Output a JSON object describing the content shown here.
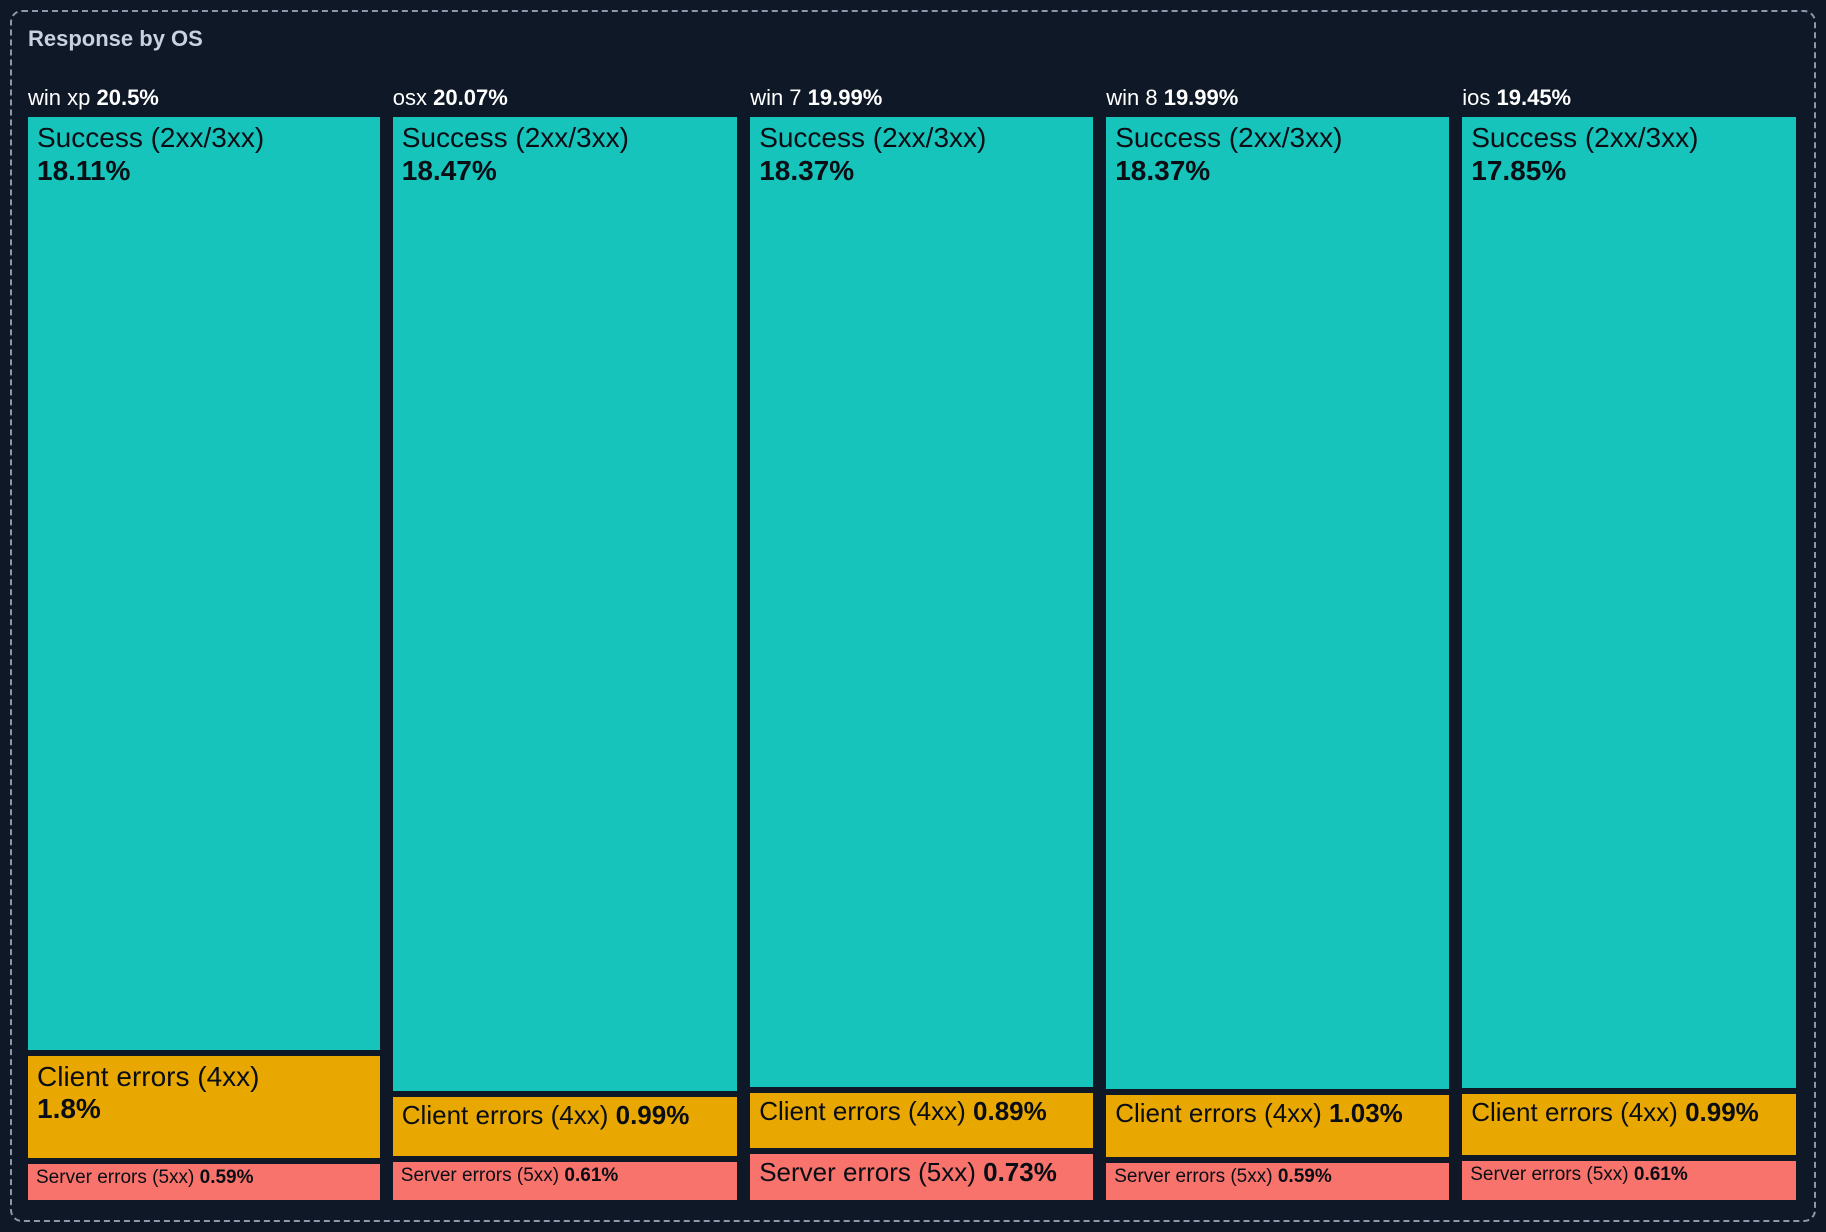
{
  "chart_data": {
    "type": "treemap",
    "title": "Response by OS",
    "unit": "%",
    "layout": {
      "orientation": "columns",
      "legend": "none",
      "column_widths_proportional_to_pct": true,
      "segment_heights_proportional_to_pct": true
    },
    "colors": {
      "success": "#16C4BC",
      "client_errors": "#E8A801",
      "server_errors": "#F8736C",
      "background": "#0E1826",
      "panel_border": "#8C99AC",
      "title_text": "#C8D1E0",
      "header_text": "#FFFFFF",
      "segment_text": "#0A0E14"
    },
    "columns": [
      {
        "label": "win xp",
        "pct": 20.5,
        "pct_label": "20.5%",
        "segments": [
          {
            "name": "success",
            "label": "Success (2xx/3xx)",
            "pct": 18.11,
            "pct_label": "18.11%"
          },
          {
            "name": "client_errors",
            "label": "Client errors (4xx)",
            "pct": 1.8,
            "pct_label": "1.8%"
          },
          {
            "name": "server_errors",
            "label": "Server errors (5xx)",
            "pct": 0.59,
            "pct_label": "0.59%"
          }
        ]
      },
      {
        "label": "osx",
        "pct": 20.07,
        "pct_label": "20.07%",
        "segments": [
          {
            "name": "success",
            "label": "Success (2xx/3xx)",
            "pct": 18.47,
            "pct_label": "18.47%"
          },
          {
            "name": "client_errors",
            "label": "Client errors (4xx)",
            "pct": 0.99,
            "pct_label": "0.99%"
          },
          {
            "name": "server_errors",
            "label": "Server errors (5xx)",
            "pct": 0.61,
            "pct_label": "0.61%"
          }
        ]
      },
      {
        "label": "win 7",
        "pct": 19.99,
        "pct_label": "19.99%",
        "segments": [
          {
            "name": "success",
            "label": "Success (2xx/3xx)",
            "pct": 18.37,
            "pct_label": "18.37%"
          },
          {
            "name": "client_errors",
            "label": "Client errors (4xx)",
            "pct": 0.89,
            "pct_label": "0.89%"
          },
          {
            "name": "server_errors",
            "label": "Server errors (5xx)",
            "pct": 0.73,
            "pct_label": "0.73%"
          }
        ]
      },
      {
        "label": "win 8",
        "pct": 19.99,
        "pct_label": "19.99%",
        "segments": [
          {
            "name": "success",
            "label": "Success (2xx/3xx)",
            "pct": 18.37,
            "pct_label": "18.37%"
          },
          {
            "name": "client_errors",
            "label": "Client errors (4xx)",
            "pct": 1.03,
            "pct_label": "1.03%"
          },
          {
            "name": "server_errors",
            "label": "Server errors (5xx)",
            "pct": 0.59,
            "pct_label": "0.59%"
          }
        ]
      },
      {
        "label": "ios",
        "pct": 19.45,
        "pct_label": "19.45%",
        "segments": [
          {
            "name": "success",
            "label": "Success (2xx/3xx)",
            "pct": 17.85,
            "pct_label": "17.85%"
          },
          {
            "name": "client_errors",
            "label": "Client errors (4xx)",
            "pct": 0.99,
            "pct_label": "0.99%"
          },
          {
            "name": "server_errors",
            "label": "Server errors (5xx)",
            "pct": 0.61,
            "pct_label": "0.61%"
          }
        ]
      }
    ]
  }
}
